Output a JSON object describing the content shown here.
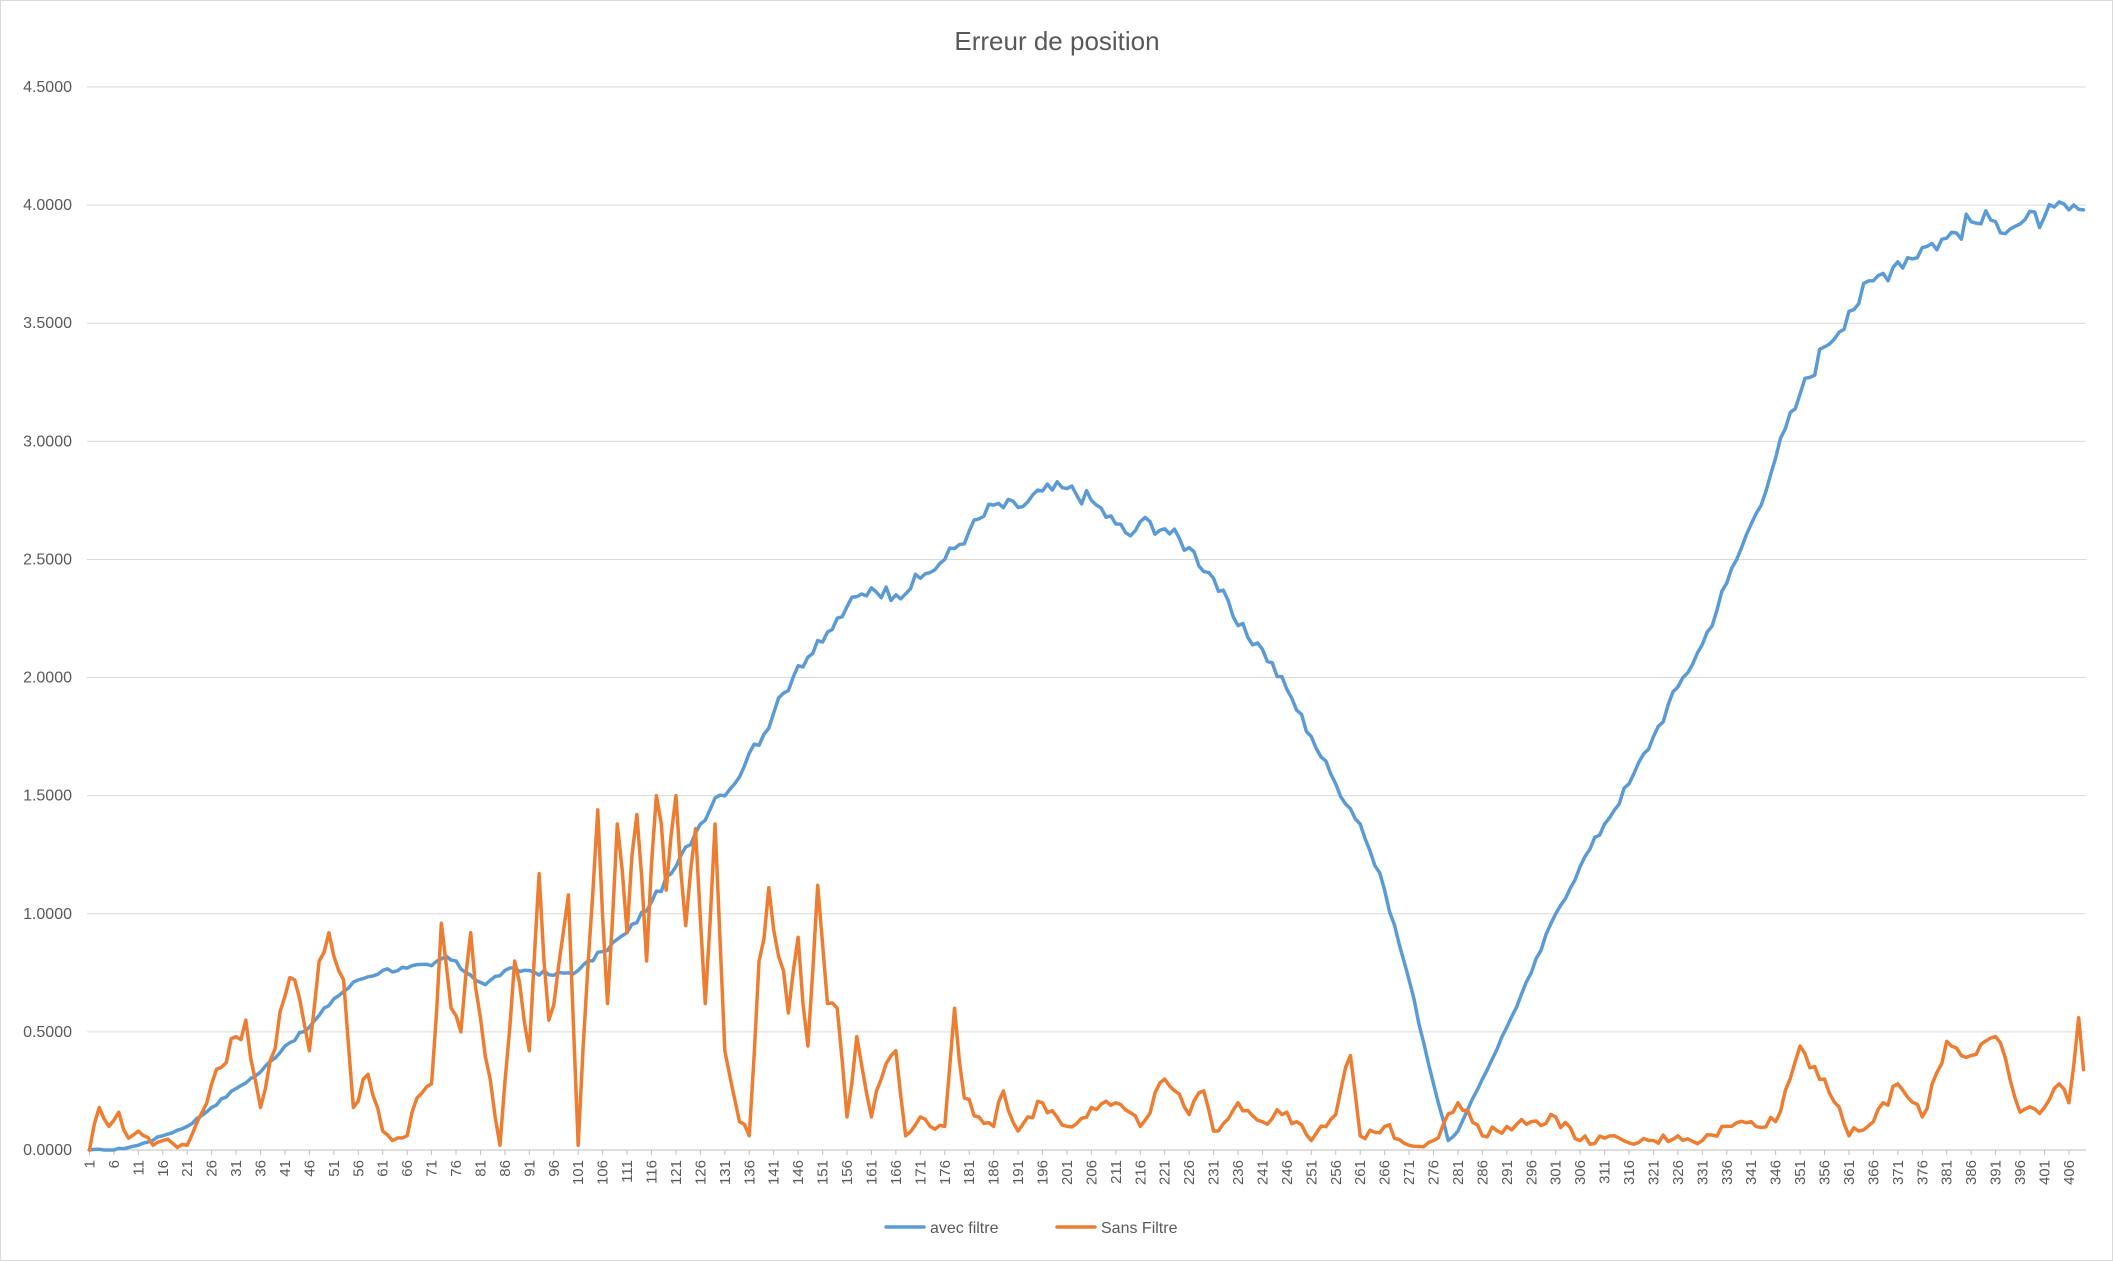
{
  "chart_data": {
    "type": "line",
    "title": "Erreur de position",
    "xlabel": "",
    "ylabel": "",
    "x_range": [
      1,
      409
    ],
    "ylim": [
      0,
      4.5
    ],
    "y_ticks": [
      0,
      0.5,
      1.0,
      1.5,
      2.0,
      2.5,
      3.0,
      3.5,
      4.0,
      4.5
    ],
    "y_tick_labels": [
      "0.0000",
      "0.5000",
      "1.0000",
      "1.5000",
      "2.0000",
      "2.5000",
      "3.0000",
      "3.5000",
      "4.0000",
      "4.5000"
    ],
    "x_tick_step": 5,
    "grid": true,
    "legend": "bottom",
    "series": [
      {
        "name": "avec filtre",
        "color": "#5b9bd5",
        "points": [
          [
            1,
            0.0
          ],
          [
            6,
            0.0
          ],
          [
            11,
            0.02
          ],
          [
            16,
            0.06
          ],
          [
            21,
            0.1
          ],
          [
            26,
            0.18
          ],
          [
            31,
            0.26
          ],
          [
            36,
            0.33
          ],
          [
            41,
            0.44
          ],
          [
            46,
            0.52
          ],
          [
            51,
            0.64
          ],
          [
            56,
            0.72
          ],
          [
            61,
            0.76
          ],
          [
            66,
            0.77
          ],
          [
            71,
            0.78
          ],
          [
            74,
            0.82
          ],
          [
            79,
            0.74
          ],
          [
            82,
            0.7
          ],
          [
            86,
            0.76
          ],
          [
            91,
            0.76
          ],
          [
            96,
            0.74
          ],
          [
            101,
            0.76
          ],
          [
            106,
            0.84
          ],
          [
            111,
            0.92
          ],
          [
            116,
            1.05
          ],
          [
            121,
            1.2
          ],
          [
            126,
            1.38
          ],
          [
            129,
            1.49
          ],
          [
            133,
            1.55
          ],
          [
            136,
            1.68
          ],
          [
            139,
            1.76
          ],
          [
            141,
            1.85
          ],
          [
            146,
            2.05
          ],
          [
            151,
            2.15
          ],
          [
            156,
            2.3
          ],
          [
            161,
            2.38
          ],
          [
            166,
            2.35
          ],
          [
            171,
            2.42
          ],
          [
            176,
            2.5
          ],
          [
            181,
            2.62
          ],
          [
            186,
            2.73
          ],
          [
            191,
            2.72
          ],
          [
            196,
            2.79
          ],
          [
            201,
            2.8
          ],
          [
            206,
            2.75
          ],
          [
            211,
            2.65
          ],
          [
            214,
            2.6
          ],
          [
            216,
            2.66
          ],
          [
            221,
            2.63
          ],
          [
            226,
            2.55
          ],
          [
            231,
            2.42
          ],
          [
            236,
            2.22
          ],
          [
            241,
            2.12
          ],
          [
            246,
            1.95
          ],
          [
            251,
            1.75
          ],
          [
            256,
            1.55
          ],
          [
            261,
            1.38
          ],
          [
            266,
            1.1
          ],
          [
            271,
            0.72
          ],
          [
            276,
            0.28
          ],
          [
            279,
            0.04
          ],
          [
            281,
            0.08
          ],
          [
            286,
            0.3
          ],
          [
            291,
            0.52
          ],
          [
            296,
            0.75
          ],
          [
            301,
            1.0
          ],
          [
            306,
            1.2
          ],
          [
            311,
            1.38
          ],
          [
            316,
            1.55
          ],
          [
            321,
            1.75
          ],
          [
            326,
            1.96
          ],
          [
            331,
            2.14
          ],
          [
            336,
            2.4
          ],
          [
            341,
            2.65
          ],
          [
            346,
            2.93
          ],
          [
            351,
            3.2
          ],
          [
            356,
            3.4
          ],
          [
            361,
            3.55
          ],
          [
            366,
            3.68
          ],
          [
            371,
            3.76
          ],
          [
            376,
            3.82
          ],
          [
            381,
            3.86
          ],
          [
            386,
            3.93
          ],
          [
            391,
            3.93
          ],
          [
            396,
            3.92
          ],
          [
            401,
            3.95
          ],
          [
            406,
            3.98
          ],
          [
            409,
            3.98
          ]
        ],
        "wiggle": 0.012
      },
      {
        "name": "Sans Filtre",
        "color": "#ed7d31",
        "points": [
          [
            1,
            0.0
          ],
          [
            3,
            0.18
          ],
          [
            5,
            0.1
          ],
          [
            7,
            0.16
          ],
          [
            9,
            0.05
          ],
          [
            11,
            0.08
          ],
          [
            14,
            0.02
          ],
          [
            16,
            0.04
          ],
          [
            21,
            0.02
          ],
          [
            26,
            0.28
          ],
          [
            28,
            0.35
          ],
          [
            31,
            0.48
          ],
          [
            33,
            0.55
          ],
          [
            36,
            0.18
          ],
          [
            38,
            0.38
          ],
          [
            41,
            0.65
          ],
          [
            43,
            0.72
          ],
          [
            46,
            0.42
          ],
          [
            48,
            0.8
          ],
          [
            50,
            0.92
          ],
          [
            53,
            0.72
          ],
          [
            55,
            0.18
          ],
          [
            58,
            0.32
          ],
          [
            61,
            0.08
          ],
          [
            63,
            0.04
          ],
          [
            66,
            0.06
          ],
          [
            68,
            0.22
          ],
          [
            71,
            0.28
          ],
          [
            73,
            0.96
          ],
          [
            75,
            0.6
          ],
          [
            77,
            0.5
          ],
          [
            79,
            0.92
          ],
          [
            81,
            0.56
          ],
          [
            83,
            0.3
          ],
          [
            85,
            0.02
          ],
          [
            88,
            0.8
          ],
          [
            91,
            0.42
          ],
          [
            93,
            1.17
          ],
          [
            95,
            0.55
          ],
          [
            97,
            0.78
          ],
          [
            99,
            1.08
          ],
          [
            101,
            0.02
          ],
          [
            103,
            0.78
          ],
          [
            105,
            1.44
          ],
          [
            107,
            0.62
          ],
          [
            109,
            1.38
          ],
          [
            111,
            0.92
          ],
          [
            113,
            1.42
          ],
          [
            115,
            0.8
          ],
          [
            117,
            1.5
          ],
          [
            119,
            1.1
          ],
          [
            121,
            1.5
          ],
          [
            123,
            0.95
          ],
          [
            125,
            1.36
          ],
          [
            127,
            0.62
          ],
          [
            129,
            1.38
          ],
          [
            131,
            0.42
          ],
          [
            134,
            0.12
          ],
          [
            136,
            0.06
          ],
          [
            138,
            0.8
          ],
          [
            140,
            1.11
          ],
          [
            142,
            0.82
          ],
          [
            144,
            0.58
          ],
          [
            146,
            0.9
          ],
          [
            148,
            0.44
          ],
          [
            150,
            1.12
          ],
          [
            152,
            0.62
          ],
          [
            154,
            0.6
          ],
          [
            156,
            0.14
          ],
          [
            158,
            0.48
          ],
          [
            161,
            0.14
          ],
          [
            163,
            0.3
          ],
          [
            166,
            0.42
          ],
          [
            168,
            0.06
          ],
          [
            171,
            0.14
          ],
          [
            173,
            0.1
          ],
          [
            176,
            0.1
          ],
          [
            178,
            0.6
          ],
          [
            180,
            0.22
          ],
          [
            183,
            0.14
          ],
          [
            186,
            0.1
          ],
          [
            188,
            0.25
          ],
          [
            191,
            0.08
          ],
          [
            193,
            0.14
          ],
          [
            196,
            0.2
          ],
          [
            201,
            0.1
          ],
          [
            206,
            0.18
          ],
          [
            211,
            0.2
          ],
          [
            216,
            0.1
          ],
          [
            221,
            0.3
          ],
          [
            226,
            0.15
          ],
          [
            229,
            0.25
          ],
          [
            231,
            0.08
          ],
          [
            236,
            0.2
          ],
          [
            241,
            0.12
          ],
          [
            246,
            0.16
          ],
          [
            251,
            0.04
          ],
          [
            256,
            0.15
          ],
          [
            259,
            0.4
          ],
          [
            261,
            0.06
          ],
          [
            266,
            0.1
          ],
          [
            271,
            0.02
          ],
          [
            276,
            0.04
          ],
          [
            281,
            0.2
          ],
          [
            286,
            0.06
          ],
          [
            291,
            0.1
          ],
          [
            296,
            0.12
          ],
          [
            301,
            0.14
          ],
          [
            306,
            0.04
          ],
          [
            311,
            0.05
          ],
          [
            316,
            0.03
          ],
          [
            321,
            0.04
          ],
          [
            326,
            0.06
          ],
          [
            331,
            0.04
          ],
          [
            336,
            0.1
          ],
          [
            341,
            0.12
          ],
          [
            346,
            0.12
          ],
          [
            351,
            0.44
          ],
          [
            356,
            0.3
          ],
          [
            361,
            0.06
          ],
          [
            366,
            0.12
          ],
          [
            371,
            0.28
          ],
          [
            376,
            0.14
          ],
          [
            381,
            0.46
          ],
          [
            386,
            0.4
          ],
          [
            391,
            0.48
          ],
          [
            396,
            0.16
          ],
          [
            401,
            0.18
          ],
          [
            404,
            0.28
          ],
          [
            406,
            0.2
          ],
          [
            408,
            0.56
          ],
          [
            409,
            0.34
          ]
        ],
        "wiggle": 0.06
      }
    ]
  }
}
